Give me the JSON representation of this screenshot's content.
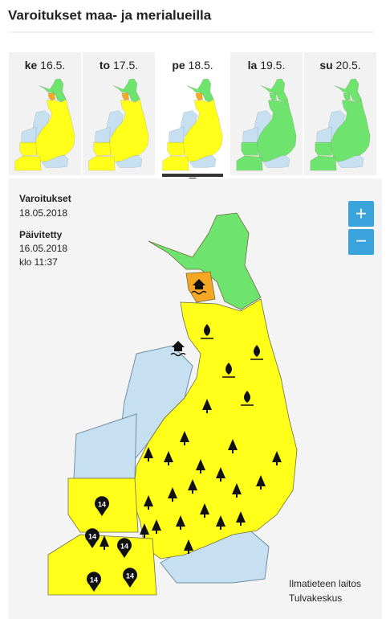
{
  "header": {
    "title": "Varoitukset maa- ja merialueilla"
  },
  "tabs": [
    {
      "day": "ke",
      "date": "16.5."
    },
    {
      "day": "to",
      "date": "17.5."
    },
    {
      "day": "pe",
      "date": "18.5."
    },
    {
      "day": "la",
      "date": "19.5."
    },
    {
      "day": "su",
      "date": "20.5."
    }
  ],
  "info": {
    "label": "Varoitukset",
    "date": "18.05.2018",
    "updated_label": "Päivitetty",
    "updated_date": "16.05.2018",
    "updated_time": "klo 11:37"
  },
  "zoom": {
    "in": "+",
    "out": "−"
  },
  "map": {
    "markers": [
      "14",
      "14",
      "14",
      "14",
      "14"
    ]
  },
  "credits": [
    "Ilmatieteen laitos",
    "Tulvakeskus"
  ]
}
